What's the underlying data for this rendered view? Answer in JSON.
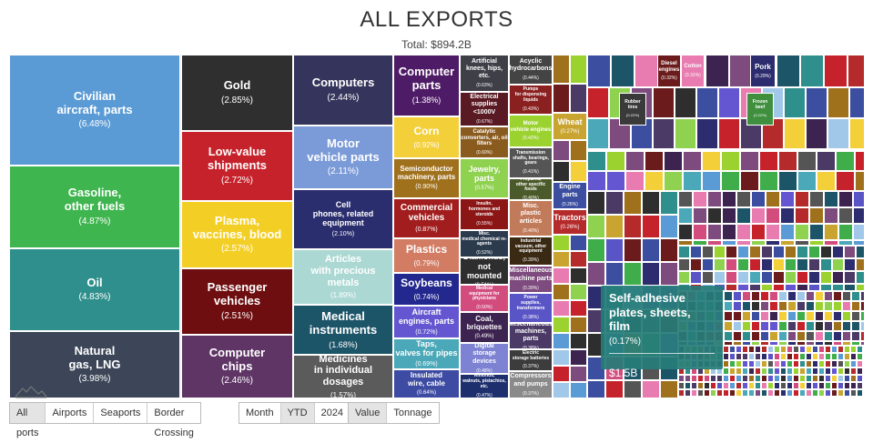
{
  "header": {
    "title": "ALL EXPORTS",
    "subtitle": "Total: $894.2B"
  },
  "colors": {
    "tooltip_bg": "#267c78",
    "active_button_bg": "#e4e4e4"
  },
  "chart_data": {
    "type": "treemap",
    "title": "ALL EXPORTS",
    "total": "Total: $894.2B",
    "value_unit": "share of total exports (%)",
    "items": [
      {
        "name": "Civilian aircraft, parts",
        "label": "Civilian\naircraft, parts",
        "value": 6.48,
        "pct": "(6.48%)",
        "color": "#5b9bd5"
      },
      {
        "name": "Gasoline, other fuels",
        "label": "Gasoline,\nother fuels",
        "value": 4.87,
        "pct": "(4.87%)",
        "color": "#3fb54f"
      },
      {
        "name": "Oil",
        "label": "Oil",
        "value": 4.83,
        "pct": "(4.83%)",
        "color": "#2e8f8c"
      },
      {
        "name": "Natural gas, LNG",
        "label": "Natural\ngas, LNG",
        "value": 3.98,
        "pct": "(3.98%)",
        "color": "#3c4658"
      },
      {
        "name": "Gold",
        "label": "Gold",
        "value": 2.85,
        "pct": "(2.85%)",
        "color": "#2f2f2f"
      },
      {
        "name": "Low-value shipments",
        "label": "Low-value\nshipments",
        "value": 2.72,
        "pct": "(2.72%)",
        "color": "#c6222b"
      },
      {
        "name": "Plasma, vaccines, blood",
        "label": "Plasma,\nvaccines, blood",
        "value": 2.57,
        "pct": "(2.57%)",
        "color": "#f3cf26"
      },
      {
        "name": "Passenger vehicles",
        "label": "Passenger\nvehicles",
        "value": 2.51,
        "pct": "(2.51%)",
        "color": "#6e0e10"
      },
      {
        "name": "Computer chips",
        "label": "Computer\nchips",
        "value": 2.46,
        "pct": "(2.46%)",
        "color": "#5f3566"
      },
      {
        "name": "Computers",
        "label": "Computers",
        "value": 2.44,
        "pct": "(2.44%)",
        "color": "#34345c"
      },
      {
        "name": "Motor vehicle parts",
        "label": "Motor\nvehicle parts",
        "value": 2.11,
        "pct": "(2.11%)",
        "color": "#7b9ad8"
      },
      {
        "name": "Cell phones, related equipment",
        "label": "Cell\nphones, related equipment",
        "value": 2.1,
        "pct": "(2.10%)",
        "color": "#2a2d6e"
      },
      {
        "name": "Articles with precious metals",
        "label": "Articles\nwith precious metals",
        "value": 1.89,
        "pct": "(1.89%)",
        "color": "#abd8d3"
      },
      {
        "name": "Medical instruments",
        "label": "Medical\ninstruments",
        "value": 1.68,
        "pct": "(1.68%)",
        "color": "#1d5568"
      },
      {
        "name": "Medicines in individual dosages",
        "label": "Medicines\nin individual dosages",
        "value": 1.57,
        "pct": "(1.57%)",
        "color": "#5b5b5b"
      },
      {
        "name": "Computer parts",
        "label": "Computer\nparts",
        "value": 1.38,
        "pct": "(1.38%)",
        "color": "#4e1b66"
      },
      {
        "name": "Corn",
        "label": "Corn",
        "value": 0.92,
        "pct": "(0.92%)",
        "color": "#f3cf3a"
      },
      {
        "name": "Semiconductor machinery, parts",
        "label": "Semiconductor\nmachinery, parts",
        "value": 0.9,
        "pct": "(0.90%)",
        "color": "#a0711c"
      },
      {
        "name": "Commercial vehicles",
        "label": "Commercial\nvehicles",
        "value": 0.87,
        "pct": "(0.87%)",
        "color": "#a21d1d"
      },
      {
        "name": "Plastics",
        "label": "Plastics",
        "value": 0.79,
        "pct": "(0.79%)",
        "color": "#d27c64"
      },
      {
        "name": "Soybeans",
        "label": "Soybeans",
        "value": 0.74,
        "pct": "(0.74%)",
        "color": "#23288e"
      },
      {
        "name": "Aircraft engines, parts",
        "label": "Aircraft\nengines, parts",
        "value": 0.72,
        "pct": "(0.72%)",
        "color": "#6356d0"
      },
      {
        "name": "Taps, valves for pipes",
        "label": "Taps,\nvalves for pipes",
        "value": 0.69,
        "pct": "(0.69%)",
        "color": "#4aa8b8"
      },
      {
        "name": "Insulated wire, cable",
        "label": "Insulated\nwire, cable",
        "value": 0.64,
        "pct": "(0.64%)",
        "color": "#3d4ba3"
      },
      {
        "name": "Artificial knees, hips, etc.",
        "label": "Artificial\nknees, hips, etc.",
        "value": 0.63,
        "pct": "(0.63%)",
        "color": "#3f3f48"
      },
      {
        "name": "Electrical supplies <1000V",
        "label": "Electrical\nsupplies <1000V",
        "value": 0.67,
        "pct": "(0.67%)",
        "color": "#5a1a24"
      },
      {
        "name": "Catalytic converters, air, oil filters",
        "label": "Catalytic\nconverters, air, oil filters",
        "value": 0.6,
        "pct": "(0.60%)",
        "color": "#8a5b1e"
      },
      {
        "name": "Jewelry, parts",
        "label": "Jewelry,\nparts",
        "value": 0.57,
        "pct": "(0.57%)",
        "color": "#8fd24f"
      },
      {
        "name": "Insulin, hormones and steroids",
        "label": "Insulin,\nhormones and steroids",
        "value": 0.55,
        "pct": "(0.55%)",
        "color": "#8c1515"
      },
      {
        "name": "Misc. medical chemical re-agents",
        "label": "Misc.\nmedical chemical re-agents",
        "value": 0.52,
        "pct": "(0.52%)",
        "color": "#2b3a4d"
      },
      {
        "name": "Diamonds, not mounted",
        "label": "Diamonds,\nnot mounted",
        "value": 0.51,
        "pct": "(0.51%)",
        "color": "#2e2e2e"
      },
      {
        "name": "Medical equipment for physicians",
        "label": "Medical\nequipment for physicians",
        "value": 0.5,
        "pct": "(0.50%)",
        "color": "#d24d7e"
      },
      {
        "name": "Coal, briquettes",
        "label": "Coal,\nbriquettes",
        "value": 0.49,
        "pct": "(0.49%)",
        "color": "#3d2450"
      },
      {
        "name": "Digital storage devices",
        "label": "Digital\nstorage devices",
        "value": 0.48,
        "pct": "(0.48%)",
        "color": "#7d82d2"
      },
      {
        "name": "Almonds, walnuts, pistachios, etc.",
        "label": "Almonds,\nwalnuts, pistachios, etc.",
        "value": 0.47,
        "pct": "(0.47%)",
        "color": "#1e2f6e"
      },
      {
        "name": "Acyclic hydrocarbons",
        "label": "Acyclic\nhydrocarbons",
        "value": 0.44,
        "pct": "(0.44%)",
        "color": "#444"
      },
      {
        "name": "Pumps for dispensing liquids",
        "label": "Pumps\nfor dispensing liquids",
        "value": 0.43,
        "pct": "(0.43%)",
        "color": "#8b2020"
      },
      {
        "name": "Motor vehicle engines",
        "label": "Motor\nvehicle engines",
        "value": 0.42,
        "pct": "(0.42%)",
        "color": "#9bd230"
      },
      {
        "name": "Transmission shafts, bearings, gears",
        "label": "Transmission\nshafts, bearings, gears",
        "value": 0.41,
        "pct": "(0.41%)",
        "color": "#555555"
      },
      {
        "name": "Prepared, other specific foods",
        "label": "Prepared,\nother specific foods",
        "value": 0.4,
        "pct": "(0.40%)",
        "color": "#4b5a2a"
      },
      {
        "name": "Misc. plastic articles",
        "label": "Misc.\nplastic articles",
        "value": 0.4,
        "pct": "(0.40%)",
        "color": "#c27b5a"
      },
      {
        "name": "Industrial vacuum, other equipment",
        "label": "Industrial\nvacuum, other equipment",
        "value": 0.39,
        "pct": "(0.39%)",
        "color": "#3a2a14"
      },
      {
        "name": "Miscellaneous machine parts",
        "label": "Miscellaneous\nmachine parts",
        "value": 0.39,
        "pct": "(0.39%)",
        "color": "#7d4b7d"
      },
      {
        "name": "Power supplies, transformers",
        "label": "Power\nsupplies, transformers",
        "value": 0.38,
        "pct": "(0.38%)",
        "color": "#5a55c6"
      },
      {
        "name": "Miscellaneous machines, parts",
        "label": "Miscellaneous\nmachines, parts",
        "value": 0.38,
        "pct": "(0.38%)",
        "color": "#4b3a66"
      },
      {
        "name": "Electric storage batteries",
        "label": "Electric\nstorage batteries",
        "value": 0.37,
        "pct": "(0.37%)",
        "color": "#3c3c3c"
      },
      {
        "name": "Compressors and pumps",
        "label": "Compressors\nand pumps",
        "value": 0.37,
        "pct": "(0.37%)",
        "color": "#8a8a8a"
      },
      {
        "name": "Wheat",
        "label": "Wheat",
        "value": 0.27,
        "pct": "(0.27%)",
        "color": "#c9a430"
      },
      {
        "name": "Engine parts",
        "label": "Engine\nparts",
        "value": 0.26,
        "pct": "(0.26%)",
        "color": "#3b4ea0"
      },
      {
        "name": "Tractors",
        "label": "Tractors",
        "value": 0.26,
        "pct": "(0.26%)",
        "color": "#b52a2a"
      },
      {
        "name": "Diesel engines",
        "label": "Diesel\nengines",
        "value": 0.32,
        "pct": "(0.32%)",
        "color": "#6b1b1b"
      },
      {
        "name": "Cotton",
        "label": "Cotton",
        "value": 0.31,
        "pct": "(0.31%)",
        "color": "#e87bb0"
      },
      {
        "name": "Pork",
        "label": "Pork",
        "value": 0.29,
        "pct": "(0.29%)",
        "color": "#2c2c6e"
      },
      {
        "name": "Rubber tires",
        "label": "Rubber\ntires",
        "value": 0.22,
        "pct": "(0.22%)",
        "color": "#3a3a3a"
      },
      {
        "name": "Frozen beef",
        "label": "Frozen\nbeef",
        "value": 0.22,
        "pct": "(0.22%)",
        "color": "#3f8f3f"
      },
      {
        "name": "Self-adhesive plates, sheets, film",
        "label": "Self-adhesive\nplates, sheets, film",
        "value": 0.17,
        "pct": "(0.17%)",
        "color": "#2f8f8a",
        "highlighted": true,
        "value_display": "$1.5B"
      }
    ]
  },
  "controls": {
    "mode_group": [
      {
        "label": "All ports",
        "active": true
      },
      {
        "label": "Airports",
        "active": false
      },
      {
        "label": "Seaports",
        "active": false
      },
      {
        "label": "Border Crossing",
        "active": false
      }
    ],
    "period_group": [
      {
        "label": "Month",
        "active": false
      },
      {
        "label": "YTD",
        "active": true
      },
      {
        "label": "2024",
        "active": false
      }
    ],
    "measure_group": [
      {
        "label": "Value",
        "active": true
      },
      {
        "label": "Tonnage",
        "active": false
      }
    ]
  }
}
